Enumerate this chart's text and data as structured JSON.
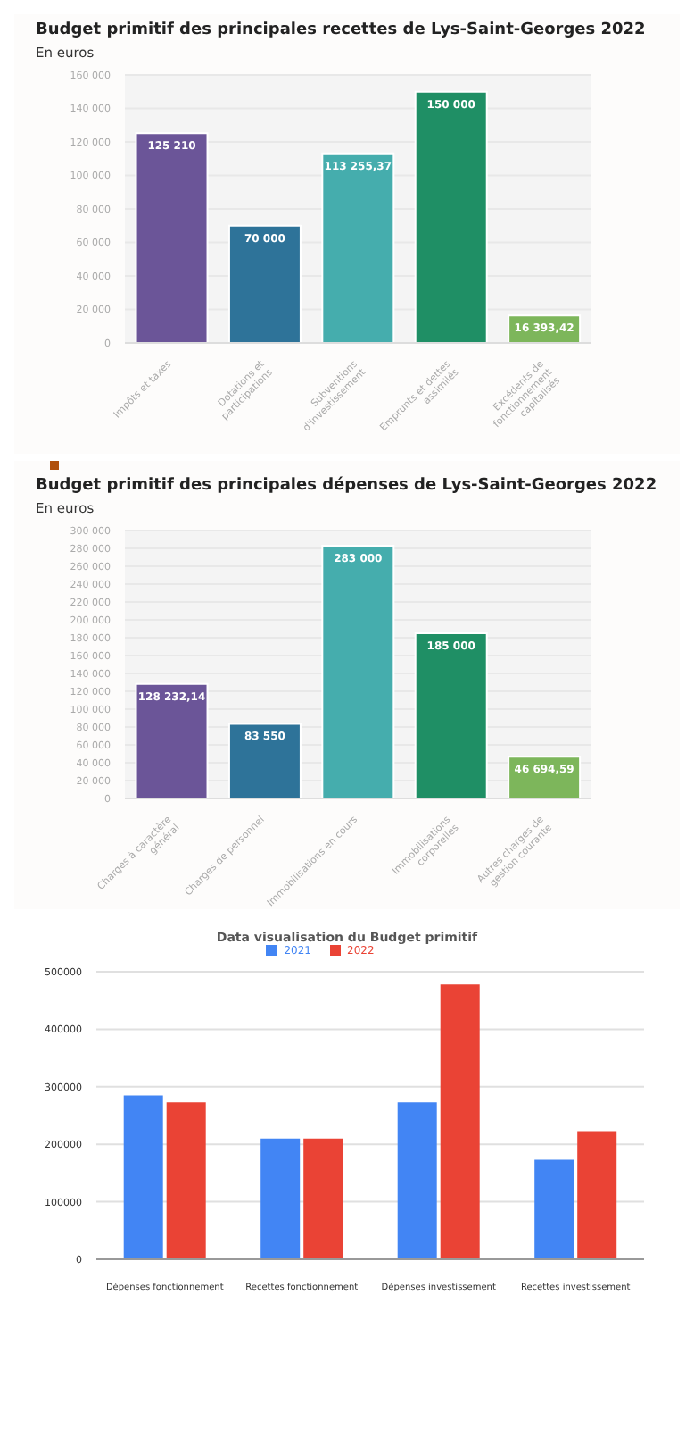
{
  "chart_data": [
    {
      "type": "bar",
      "title": "Budget primitif des principales recettes de Lys-Saint-Georges 2022",
      "subtitle": "En euros",
      "categories": [
        "Impôts et taxes",
        "Dotations et participations",
        "Subventions d'investissement",
        "Emprunts et dettes assimilés",
        "Excédents de fonctionnement capitalisés"
      ],
      "values": [
        125210,
        70000,
        113255.37,
        150000,
        16393.42
      ],
      "value_labels": [
        "125 210",
        "70 000",
        "113 255,37",
        "150 000",
        "16 393,42"
      ],
      "colors": [
        "#6b5598",
        "#2e7399",
        "#45adad",
        "#1f8f65",
        "#7db65b"
      ],
      "ylim": [
        0,
        160000
      ],
      "yticks": [
        0,
        {
          "value": 20000,
          "label": "20 000"
        },
        {
          "value": 40000,
          "label": "40 000"
        },
        {
          "value": 60000,
          "label": "60 000"
        },
        {
          "value": 80000,
          "label": "80 000"
        },
        {
          "value": 100000,
          "label": "100 000"
        },
        {
          "value": 120000,
          "label": "120 000"
        },
        {
          "value": 140000,
          "label": "140 000"
        },
        {
          "value": 160000,
          "label": "160 000"
        }
      ],
      "grid": "y"
    },
    {
      "type": "bar",
      "title": "Budget primitif des principales dépenses de Lys-Saint-Georges 2022",
      "subtitle": "En euros",
      "categories": [
        "Charges à caractère général",
        "Charges de personnel",
        "Immobilisations en cours",
        "Immobilisations corporelles",
        "Autres charges de gestion courante"
      ],
      "values": [
        128232.14,
        83550,
        283000,
        185000,
        46694.59
      ],
      "value_labels": [
        "128 232,14",
        "83 550",
        "283 000",
        "185 000",
        "46 694,59"
      ],
      "colors": [
        "#6b5598",
        "#2e7399",
        "#45adad",
        "#1f8f65",
        "#7db65b"
      ],
      "ylim": [
        0,
        300000
      ],
      "yticks": [
        0,
        {
          "value": 20000,
          "label": "20 000"
        },
        {
          "value": 40000,
          "label": "40 000"
        },
        {
          "value": 60000,
          "label": "60 000"
        },
        {
          "value": 80000,
          "label": "80 000"
        },
        {
          "value": 100000,
          "label": "100 000"
        },
        {
          "value": 120000,
          "label": "120 000"
        },
        {
          "value": 140000,
          "label": "140 000"
        },
        {
          "value": 160000,
          "label": "160 000"
        },
        {
          "value": 180000,
          "label": "180 000"
        },
        {
          "value": 200000,
          "label": "200 000"
        },
        {
          "value": 220000,
          "label": "220 000"
        },
        {
          "value": 240000,
          "label": "240 000"
        },
        {
          "value": 260000,
          "label": "260 000"
        },
        {
          "value": 280000,
          "label": "280 000"
        },
        {
          "value": 300000,
          "label": "300 000"
        }
      ],
      "grid": "y"
    },
    {
      "type": "bar",
      "title": "Data visualisation du Budget primitif",
      "categories": [
        "Dépenses fonctionnement",
        "Recettes fonctionnement",
        "Dépenses investissement",
        "Recettes investissement"
      ],
      "series": [
        {
          "name": "2021",
          "color": "#4285f4",
          "values": [
            285000,
            210000,
            273000,
            173000
          ]
        },
        {
          "name": "2022",
          "color": "#ea4335",
          "values": [
            273000,
            210000,
            478000,
            223000
          ]
        }
      ],
      "ylim": [
        0,
        500000
      ],
      "yticks": [
        0,
        100000,
        200000,
        300000,
        400000,
        500000
      ],
      "grid": "y",
      "legend": "top"
    }
  ]
}
